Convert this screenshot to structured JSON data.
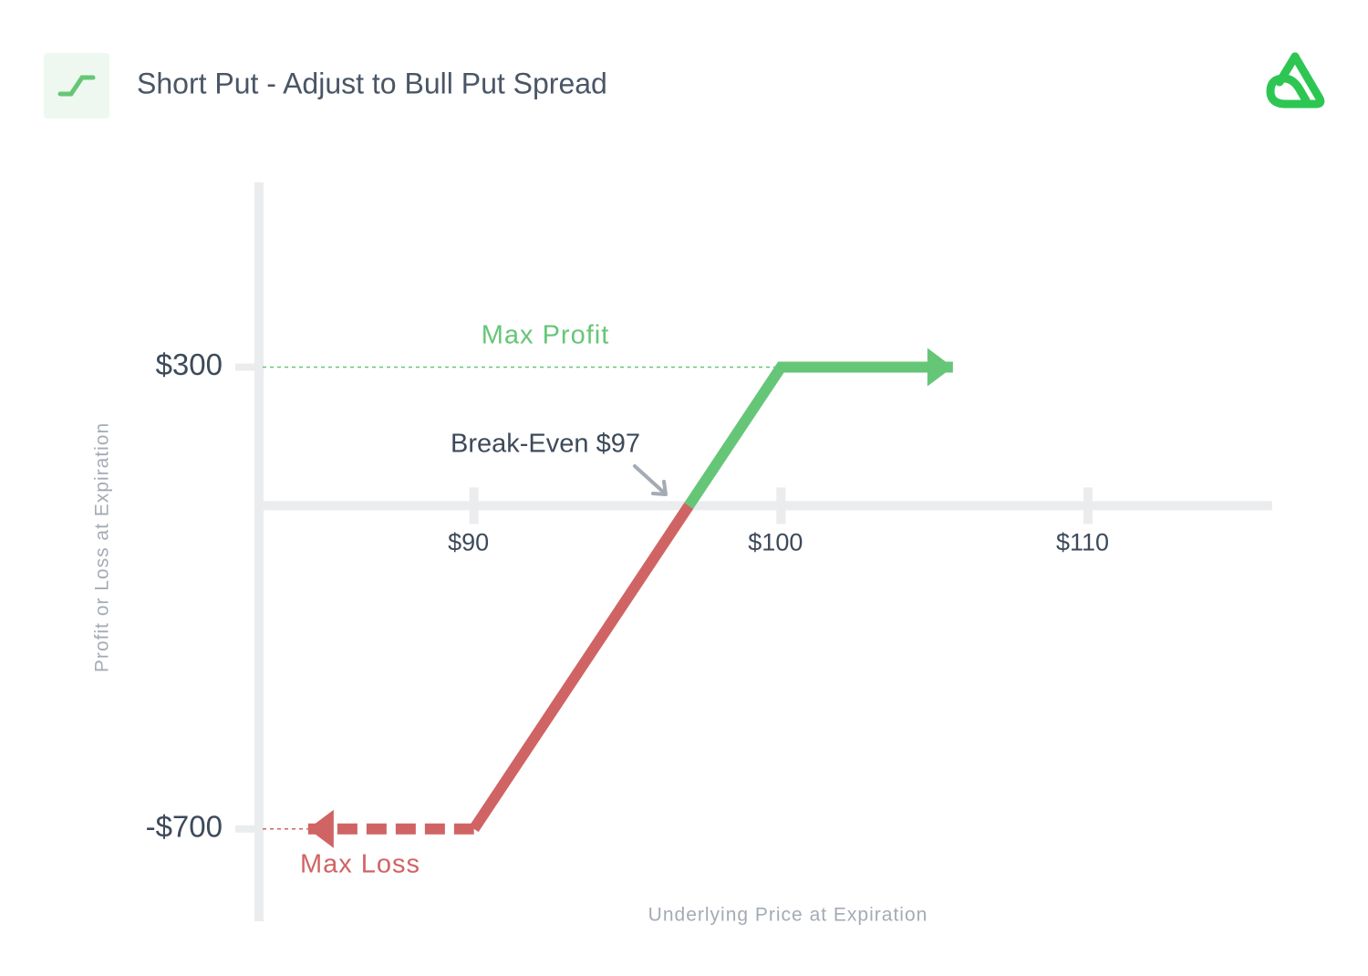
{
  "chart_data": {
    "type": "line",
    "title": "Short Put - Adjust to Bull Put Spread",
    "xlabel": "Underlying Price at Expiration",
    "ylabel": "Profit or Loss at Expiration",
    "xlim": [
      83,
      116
    ],
    "ylim": [
      -900,
      700
    ],
    "xticks": [
      {
        "value": 90,
        "label": "$90"
      },
      {
        "value": 100,
        "label": "$100"
      },
      {
        "value": 110,
        "label": "$110"
      }
    ],
    "yticks": [
      {
        "value": 300,
        "label": "$300"
      },
      {
        "value": -700,
        "label": "-$700"
      }
    ],
    "grid": false,
    "series": [
      {
        "color": "#d06464",
        "x": [
          84.6,
          90
        ],
        "values": [
          -700,
          -700
        ],
        "dashed": true,
        "arrow": "start"
      },
      {
        "color": "#d06464",
        "x": [
          90,
          97
        ],
        "values": [
          -700,
          0
        ]
      },
      {
        "color": "#66c677",
        "x": [
          97,
          100,
          105.6
        ],
        "values": [
          0,
          300,
          300
        ],
        "arrow": "end"
      }
    ],
    "annotations": {
      "max_profit": "Max Profit",
      "max_loss": "Max Loss",
      "break_even": "Break-Even $97"
    }
  }
}
